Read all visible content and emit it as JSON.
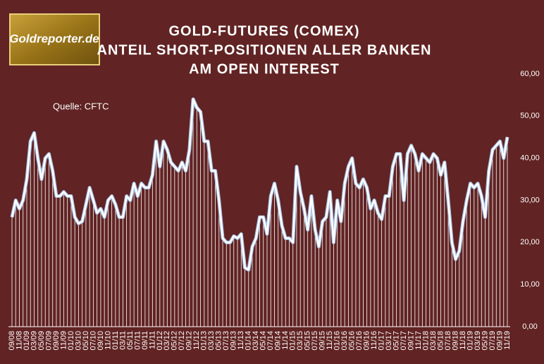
{
  "chart_data": {
    "type": "line",
    "title": [
      "GOLD-FUTURES (COMEX)",
      "ANTEIL SHORT-POSITIONEN ALLER BANKEN",
      "AM OPEN INTEREST"
    ],
    "logo": "Goldreporter.de",
    "source": "Quelle: CFTC",
    "categories": [
      "09/08",
      null,
      "11/08",
      null,
      "01/09",
      null,
      "03/09",
      null,
      "05/09",
      null,
      "07/09",
      null,
      "09/09",
      null,
      "11/09",
      null,
      "01/10",
      null,
      "03/10",
      null,
      "05/10",
      null,
      "07/10",
      null,
      "09/10",
      null,
      "11/10",
      null,
      "01/11",
      null,
      "03/11",
      null,
      "05/11",
      null,
      "07/11",
      null,
      "09/11",
      null,
      "11/11",
      null,
      "01/12",
      null,
      "03/12",
      null,
      "05/12",
      null,
      "07/12",
      null,
      "09/12",
      null,
      "11/12",
      null,
      "01/13",
      null,
      "03/13",
      null,
      "05/13",
      null,
      "07/13",
      null,
      "09/13",
      null,
      "11/13",
      null,
      "01/14",
      null,
      "03/14",
      null,
      "05/14",
      null,
      "07/14",
      null,
      "09/14",
      null,
      "11/14",
      null,
      "01/15",
      null,
      "03/15",
      null,
      "05/15",
      null,
      "07/15",
      null,
      "09/15",
      null,
      "11/15",
      null,
      "01/16",
      null,
      "03/16",
      null,
      "05/16",
      null,
      "07/16",
      null,
      "09/16",
      null,
      "11/16",
      null,
      "01/17",
      null,
      "03/17",
      null,
      "05/17",
      null,
      "07/17",
      null,
      "09/17",
      null,
      "11/17",
      null,
      "01/18",
      null,
      "03/18",
      null,
      "05/18",
      null,
      "07/18",
      null,
      "09/18",
      null,
      "11/18",
      null,
      "01/19",
      null,
      "03/19",
      null,
      "05/19",
      null,
      "07/19",
      null,
      "09/19",
      null,
      "11/19"
    ],
    "values": [
      26,
      30,
      28,
      30,
      35,
      44,
      46,
      40,
      35,
      40,
      41,
      37,
      31,
      31,
      32,
      31,
      31,
      26,
      24.5,
      25,
      29,
      33,
      30,
      27,
      28,
      26,
      30,
      31,
      29,
      26,
      26,
      31,
      30,
      34,
      31,
      34,
      33,
      33,
      36,
      44,
      38,
      44,
      42,
      39,
      38,
      37,
      39,
      37,
      42,
      54,
      52,
      51,
      44,
      44,
      37,
      37,
      30,
      21,
      20,
      20,
      21.5,
      21,
      22,
      14,
      13.5,
      19,
      21,
      26,
      26,
      22,
      31,
      34,
      30,
      24,
      21,
      21,
      20,
      38,
      32,
      28,
      23,
      31,
      23,
      19,
      25,
      26,
      32,
      20,
      30,
      25,
      34,
      38,
      40,
      34,
      33,
      35,
      33,
      28,
      30,
      27,
      25.5,
      31,
      31,
      38,
      41,
      41,
      30,
      41,
      43,
      41,
      37,
      41,
      40,
      39,
      41,
      40,
      36,
      39,
      30,
      20,
      16,
      18,
      25,
      30,
      34,
      33,
      34,
      31,
      26,
      37,
      42,
      43,
      44,
      40,
      45
    ],
    "color": "#ffffff",
    "outline_color": "#a9c4e6",
    "ylim": [
      0,
      60
    ],
    "yticks": [
      {
        "value": 0,
        "label": "0,00"
      },
      {
        "value": 10,
        "label": "10,00"
      },
      {
        "value": 20,
        "label": "20,00"
      },
      {
        "value": 30,
        "label": "30,00"
      },
      {
        "value": 40,
        "label": "40,00"
      },
      {
        "value": 50,
        "label": "50,00"
      },
      {
        "value": 60,
        "label": "60,00"
      }
    ],
    "drop_lines": true,
    "grid": false
  }
}
